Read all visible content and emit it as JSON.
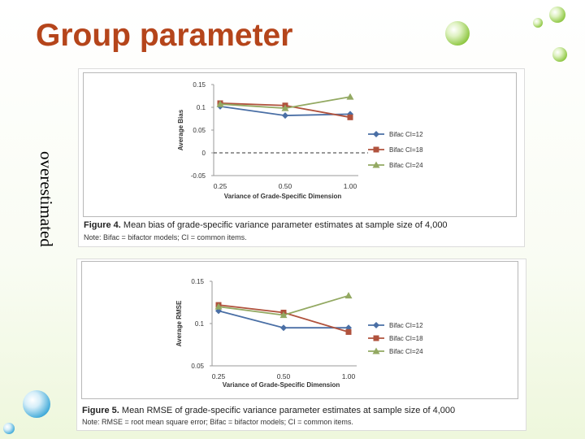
{
  "slide": {
    "title": "Group parameter",
    "side_label": "overestimated"
  },
  "figures": [
    {
      "caption_label": "Figure 4.",
      "caption_text": "Mean bias of grade-specific variance parameter estimates at sample size of 4,000",
      "note": "Note: Bifac = bifactor models; CI = common items."
    },
    {
      "caption_label": "Figure 5.",
      "caption_text": "Mean RMSE of grade-specific variance parameter estimates at sample size of 4,000",
      "note": "Note: RMSE = root mean square error; Bifac = bifactor models; CI = common items."
    }
  ],
  "colors": {
    "title": "#b5451b",
    "ci12": "#4a6fa5",
    "ci18": "#b0523d",
    "ci24": "#93a962",
    "drop_green": "#8cc63f",
    "drop_blue": "#3fa9d8"
  },
  "chart_data": [
    {
      "type": "line",
      "x": [
        "0.25",
        "0.50",
        "1.00"
      ],
      "xlabel": "Variance of Grade-Specific Dimension",
      "ylabel": "Average Bias",
      "ylim": [
        -0.05,
        0.15
      ],
      "yticks": [
        "-0.05",
        "0",
        "0.05",
        "0.1",
        "0.15"
      ],
      "reference_line": 0,
      "grid": false,
      "legend_position": "right",
      "series": [
        {
          "name": "Bifac CI=12",
          "marker": "diamond",
          "values": [
            0.102,
            0.082,
            0.085
          ]
        },
        {
          "name": "Bifac CI=18",
          "marker": "square",
          "values": [
            0.109,
            0.104,
            0.078
          ]
        },
        {
          "name": "Bifac CI=24",
          "marker": "triangle",
          "values": [
            0.107,
            0.098,
            0.123
          ]
        }
      ]
    },
    {
      "type": "line",
      "x": [
        "0.25",
        "0.50",
        "1.00"
      ],
      "xlabel": "Variance of Grade-Specific Dimension",
      "ylabel": "Average RMSE",
      "ylim": [
        0.05,
        0.15
      ],
      "yticks": [
        "0.05",
        "0.1",
        "0.15"
      ],
      "grid": false,
      "legend_position": "right",
      "series": [
        {
          "name": "Bifac CI=12",
          "marker": "diamond",
          "values": [
            0.115,
            0.095,
            0.095
          ]
        },
        {
          "name": "Bifac CI=18",
          "marker": "square",
          "values": [
            0.122,
            0.113,
            0.09
          ]
        },
        {
          "name": "Bifac CI=24",
          "marker": "triangle",
          "values": [
            0.12,
            0.11,
            0.133
          ]
        }
      ]
    }
  ]
}
